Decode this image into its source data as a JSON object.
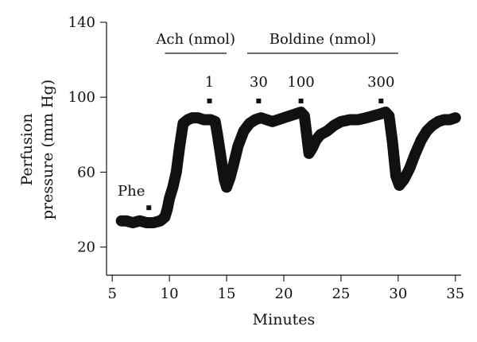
{
  "chart_data": {
    "type": "line",
    "xlabel": "Minutes",
    "ylabel_lines": [
      "Perfusion",
      "pressure (mm Hg)"
    ],
    "xlim": [
      4.5,
      35.5
    ],
    "ylim": [
      5,
      140
    ],
    "x_ticks": [
      5,
      10,
      15,
      20,
      25,
      30,
      35
    ],
    "y_ticks": [
      20,
      60,
      100,
      140
    ],
    "series": [
      {
        "x": [
          5.8,
          6.2,
          6.8,
          7.4,
          8.0,
          8.6,
          9.2,
          9.6,
          9.8,
          10.0,
          10.3,
          10.6,
          10.9,
          11.2,
          11.6,
          12.0,
          12.5,
          13.0,
          13.6,
          14.0,
          14.2,
          14.5,
          14.8,
          15.0,
          15.3,
          15.6,
          16.0,
          16.5,
          17.0,
          17.5,
          18.0,
          18.5,
          19.0,
          19.5,
          20.0,
          20.5,
          21.0,
          21.5,
          21.8,
          22.0,
          22.2,
          22.5,
          22.8,
          23.2,
          23.8,
          24.4,
          25.0,
          25.8,
          26.5,
          27.2,
          27.8,
          28.4,
          28.9,
          29.2,
          29.5,
          29.8,
          30.1,
          30.5,
          31.0,
          31.5,
          32.0,
          32.5,
          33.0,
          33.5,
          34.0,
          34.5,
          35.0
        ],
        "y": [
          34,
          34,
          33,
          34,
          33,
          33,
          34,
          36,
          40,
          46,
          52,
          60,
          74,
          86,
          88,
          89,
          89,
          88,
          88,
          87,
          80,
          68,
          56,
          52,
          57,
          64,
          74,
          82,
          86,
          88,
          89,
          88,
          87,
          88,
          89,
          90,
          91,
          92,
          90,
          80,
          70,
          73,
          77,
          80,
          82,
          85,
          87,
          88,
          88,
          89,
          90,
          91,
          92,
          90,
          76,
          58,
          53,
          56,
          62,
          70,
          77,
          82,
          85,
          87,
          88,
          88,
          89
        ]
      }
    ],
    "phase_labels": [
      {
        "text": "Ach (nmol)",
        "start": 9.6,
        "end": 15.0
      },
      {
        "text": "Boldine (nmol)",
        "start": 16.8,
        "end": 30.0
      }
    ],
    "dose_markers": [
      {
        "text": "1",
        "x": 13.5,
        "y": 98
      },
      {
        "text": "30",
        "x": 17.8,
        "y": 98
      },
      {
        "text": "100",
        "x": 21.5,
        "y": 98
      },
      {
        "text": "300",
        "x": 28.5,
        "y": 98
      }
    ],
    "annotations": [
      {
        "text": "Phe",
        "x": 8.2,
        "y": 41
      }
    ]
  }
}
